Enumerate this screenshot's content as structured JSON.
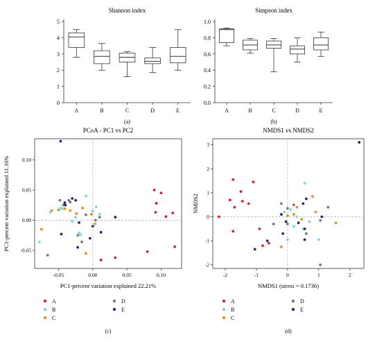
{
  "chart_data": [
    {
      "id": "a",
      "type": "box",
      "title": "Shannon index",
      "panel_label": "(a)",
      "categories": [
        "A",
        "B",
        "C",
        "D",
        "E"
      ],
      "boxes": [
        {
          "min": 2.8,
          "q1": 3.4,
          "median": 4.05,
          "q3": 4.3,
          "max": 4.5
        },
        {
          "min": 2.0,
          "q1": 2.4,
          "median": 2.85,
          "q3": 3.2,
          "max": 3.65
        },
        {
          "min": 1.6,
          "q1": 2.5,
          "median": 2.8,
          "q3": 3.05,
          "max": 3.15
        },
        {
          "min": 1.85,
          "q1": 2.4,
          "median": 2.55,
          "q3": 2.75,
          "max": 3.4
        },
        {
          "min": 2.0,
          "q1": 2.45,
          "median": 2.85,
          "q3": 3.4,
          "max": 4.5
        }
      ],
      "yticks": [
        0,
        1,
        2,
        3,
        4,
        5
      ],
      "ylim": [
        0,
        5
      ]
    },
    {
      "id": "b",
      "type": "box",
      "title": "Simpson index",
      "panel_label": "(b)",
      "categories": [
        "A",
        "B",
        "C",
        "D",
        "E"
      ],
      "boxes": [
        {
          "min": 0.7,
          "q1": 0.74,
          "median": 0.9,
          "q3": 0.91,
          "max": 0.92
        },
        {
          "min": 0.61,
          "q1": 0.65,
          "median": 0.71,
          "q3": 0.77,
          "max": 0.79
        },
        {
          "min": 0.38,
          "q1": 0.67,
          "median": 0.71,
          "q3": 0.76,
          "max": 0.79
        },
        {
          "min": 0.5,
          "q1": 0.6,
          "median": 0.66,
          "q3": 0.7,
          "max": 0.8
        },
        {
          "min": 0.57,
          "q1": 0.65,
          "median": 0.71,
          "q3": 0.8,
          "max": 0.87
        }
      ],
      "yticks": [
        "0.0",
        "0.2",
        "0.4",
        "0.6",
        "0.8",
        "1.0"
      ],
      "ylim": [
        0,
        1
      ]
    },
    {
      "id": "c",
      "type": "scatter",
      "title": "PCoA - PC1 vs PC2",
      "panel_label": "(c)",
      "xlabel": "PC1-percent variation explained 22.21%",
      "ylabel": "PC1-percent variation explained 11.16%",
      "xlim": [
        -0.085,
        0.13
      ],
      "ylim": [
        -0.08,
        0.135
      ],
      "xticks": [
        "-0.05",
        "0.00",
        "0.05",
        "0.10"
      ],
      "xtick_values": [
        -0.05,
        0,
        0.05,
        0.1
      ],
      "yticks": [
        "0.10",
        "0.05",
        "0.00",
        "-0.05"
      ],
      "ytick_values": [
        0.1,
        0.05,
        0,
        -0.05
      ],
      "series": [
        {
          "name": "A",
          "color": "#d7232e",
          "points": [
            [
              0.09,
              0.05
            ],
            [
              0.1,
              0.045
            ],
            [
              0.093,
              0.028
            ],
            [
              0.092,
              0.013
            ],
            [
              0.107,
              0.006
            ],
            [
              0.117,
              0.012
            ],
            [
              0.12,
              -0.044
            ],
            [
              0.08,
              -0.052
            ],
            [
              0.033,
              -0.062
            ],
            [
              0.012,
              -0.066
            ]
          ]
        },
        {
          "name": "B",
          "color": "#7fd3e6",
          "points": [
            [
              -0.078,
              -0.036
            ],
            [
              -0.062,
              0.013
            ],
            [
              -0.047,
              0.02
            ],
            [
              -0.045,
              0.019
            ],
            [
              -0.03,
              -0.002
            ],
            [
              -0.02,
              -0.021
            ],
            [
              -0.018,
              -0.024
            ],
            [
              -0.01,
              0.04
            ],
            [
              0.0,
              0.015
            ],
            [
              0.005,
              0.022
            ],
            [
              0.01,
              0.01
            ],
            [
              -0.025,
              0.005
            ]
          ]
        },
        {
          "name": "C",
          "color": "#ef8a1d",
          "points": [
            [
              -0.075,
              -0.015
            ],
            [
              -0.06,
              0.016
            ],
            [
              -0.05,
              0.017
            ],
            [
              -0.041,
              0.019
            ],
            [
              -0.033,
              0.016
            ],
            [
              -0.015,
              0.02
            ],
            [
              -0.002,
              0.01
            ],
            [
              -0.01,
              -0.055
            ],
            [
              0.003,
              -0.006
            ],
            [
              -0.024,
              0.011
            ]
          ]
        },
        {
          "name": "D",
          "color": "#777777",
          "points": [
            [
              -0.066,
              -0.058
            ],
            [
              -0.048,
              0.033
            ],
            [
              -0.035,
              0.033
            ],
            [
              -0.033,
              0.03
            ],
            [
              -0.022,
              -0.025
            ],
            [
              -0.016,
              -0.036
            ],
            [
              -0.01,
              0.009
            ],
            [
              0.004,
              0.0
            ],
            [
              0.01,
              0.005
            ],
            [
              -0.043,
              0.025
            ]
          ]
        },
        {
          "name": "E",
          "color": "#252a6b",
          "points": [
            [
              -0.047,
              0.131
            ],
            [
              -0.041,
              0.029
            ],
            [
              -0.04,
              0.025
            ],
            [
              -0.03,
              0.036
            ],
            [
              -0.025,
              0.033
            ],
            [
              -0.02,
              -0.004
            ],
            [
              -0.022,
              -0.045
            ],
            [
              -0.004,
              -0.03
            ],
            [
              0.0,
              -0.01
            ],
            [
              0.033,
              0.005
            ],
            [
              0.012,
              -0.02
            ],
            [
              -0.046,
              -0.023
            ]
          ]
        }
      ]
    },
    {
      "id": "d",
      "type": "scatter",
      "title": "NMDS1 vs NMDS2",
      "panel_label": "(d)",
      "xlabel": "NMDS1 (stress = 0.1736)",
      "ylabel": "NMDS2",
      "xlim": [
        -2.4,
        2.45
      ],
      "ylim": [
        -2.15,
        3.25
      ],
      "xticks": [
        "-2",
        "-1",
        "0",
        "1",
        "2"
      ],
      "xtick_values": [
        -2,
        -1,
        0,
        1,
        2
      ],
      "yticks": [
        "3",
        "2",
        "1",
        "0",
        "-1",
        "-2"
      ],
      "ytick_values": [
        3,
        2,
        1,
        0,
        -1,
        -2
      ],
      "series": [
        {
          "name": "A",
          "color": "#d7232e",
          "points": [
            [
              -2.2,
              0.0
            ],
            [
              -1.85,
              0.7
            ],
            [
              -1.75,
              1.55
            ],
            [
              -1.7,
              0.4
            ],
            [
              -1.5,
              1.05
            ],
            [
              -1.45,
              0.65
            ],
            [
              -1.1,
              1.45
            ],
            [
              -1.25,
              0.55
            ],
            [
              -1.75,
              -0.6
            ],
            [
              -0.6,
              -1.1
            ],
            [
              -0.8,
              -1.2
            ],
            [
              -0.9,
              -0.5
            ]
          ]
        },
        {
          "name": "B",
          "color": "#7fd3e6",
          "points": [
            [
              0.55,
              1.4
            ],
            [
              0.1,
              0.3
            ],
            [
              -0.1,
              0.2
            ],
            [
              0.0,
              -0.95
            ],
            [
              0.2,
              -0.4
            ],
            [
              0.7,
              -0.2
            ],
            [
              1.0,
              -0.95
            ],
            [
              0.5,
              -0.5
            ],
            [
              0.3,
              0.0
            ]
          ]
        },
        {
          "name": "C",
          "color": "#ef8a1d",
          "points": [
            [
              -0.2,
              -1.25
            ],
            [
              0.2,
              0.1
            ],
            [
              0.3,
              0.4
            ],
            [
              0.8,
              0.85
            ],
            [
              1.55,
              -0.25
            ],
            [
              0.9,
              0.2
            ],
            [
              0.45,
              -0.1
            ],
            [
              0.0,
              0.05
            ]
          ]
        },
        {
          "name": "D",
          "color": "#777777",
          "points": [
            [
              -0.2,
              0.55
            ],
            [
              0.0,
              0.35
            ],
            [
              0.0,
              -0.3
            ],
            [
              0.6,
              -0.7
            ],
            [
              1.05,
              -2.0
            ],
            [
              1.05,
              -0.15
            ],
            [
              1.3,
              0.4
            ],
            [
              -0.45,
              -0.3
            ],
            [
              0.2,
              0.5
            ]
          ]
        },
        {
          "name": "E",
          "color": "#252a6b",
          "points": [
            [
              2.3,
              3.1
            ],
            [
              -0.2,
              0.1
            ],
            [
              -0.05,
              -0.2
            ],
            [
              0.5,
              0.55
            ],
            [
              0.6,
              0.75
            ],
            [
              -0.15,
              -0.7
            ],
            [
              -1.05,
              -1.35
            ],
            [
              -0.65,
              -1.0
            ],
            [
              0.55,
              -0.5
            ],
            [
              0.55,
              -0.95
            ],
            [
              0.35,
              -0.25
            ],
            [
              1.1,
              0.0
            ]
          ]
        }
      ]
    }
  ]
}
